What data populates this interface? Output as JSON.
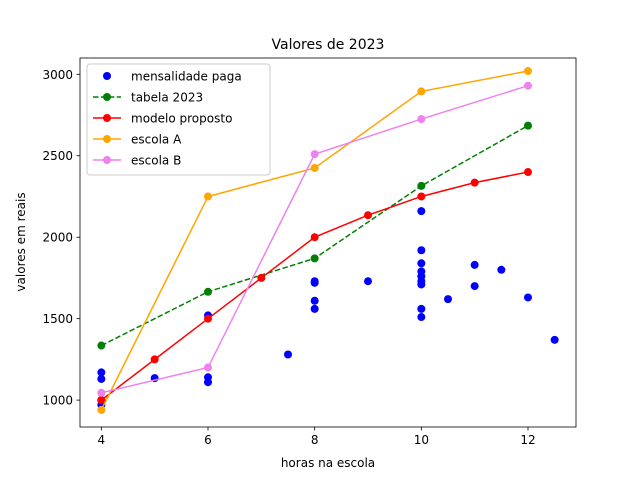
{
  "chart_data": {
    "type": "scatter",
    "title": "Valores de 2023",
    "xlabel": "horas na escola",
    "ylabel": "valores em reais",
    "xlim": [
      3.6,
      12.9
    ],
    "ylim": [
      835,
      3100
    ],
    "xticks": [
      4,
      6,
      8,
      10,
      12
    ],
    "yticks": [
      1000,
      1500,
      2000,
      2500,
      3000
    ],
    "grid": false,
    "legend_position": "top-left",
    "series": [
      {
        "name": "mensalidade paga",
        "kind": "scatter",
        "color": "#0000ff",
        "points": [
          [
            4,
            1170
          ],
          [
            4,
            1130
          ],
          [
            4,
            1000
          ],
          [
            4,
            970
          ],
          [
            5,
            1135
          ],
          [
            6,
            1520
          ],
          [
            6,
            1140
          ],
          [
            6,
            1110
          ],
          [
            7.5,
            1280
          ],
          [
            8,
            1730
          ],
          [
            8,
            1720
          ],
          [
            8,
            1610
          ],
          [
            8,
            1560
          ],
          [
            9,
            1730
          ],
          [
            10,
            2160
          ],
          [
            10,
            1920
          ],
          [
            10,
            1840
          ],
          [
            10,
            1790
          ],
          [
            10,
            1760
          ],
          [
            10,
            1730
          ],
          [
            10,
            1710
          ],
          [
            10,
            1560
          ],
          [
            10,
            1510
          ],
          [
            10.5,
            1620
          ],
          [
            11,
            1830
          ],
          [
            11,
            1700
          ],
          [
            11.5,
            1800
          ],
          [
            12,
            1630
          ],
          [
            12.5,
            1370
          ]
        ]
      },
      {
        "name": "tabela 2023",
        "kind": "line-dashed",
        "color": "#008000",
        "points": [
          [
            4,
            1335
          ],
          [
            6,
            1665
          ],
          [
            8,
            1870
          ],
          [
            10,
            2315
          ],
          [
            12,
            2685
          ]
        ]
      },
      {
        "name": "modelo proposto",
        "kind": "line",
        "color": "#ff0000",
        "points": [
          [
            4,
            1000
          ],
          [
            5,
            1250
          ],
          [
            6,
            1500
          ],
          [
            7,
            1750
          ],
          [
            8,
            2000
          ],
          [
            9,
            2135
          ],
          [
            10,
            2250
          ],
          [
            11,
            2335
          ],
          [
            12,
            2400
          ]
        ]
      },
      {
        "name": "escola A",
        "kind": "line",
        "color": "#ffa500",
        "points": [
          [
            4,
            940
          ],
          [
            6,
            2250
          ],
          [
            8,
            2425
          ],
          [
            10,
            2895
          ],
          [
            12,
            3020
          ]
        ]
      },
      {
        "name": "escola B",
        "kind": "line",
        "color": "#ee82ee",
        "points": [
          [
            4,
            1045
          ],
          [
            6,
            1200
          ],
          [
            8,
            2510
          ],
          [
            10,
            2725
          ],
          [
            12,
            2930
          ]
        ]
      }
    ]
  }
}
